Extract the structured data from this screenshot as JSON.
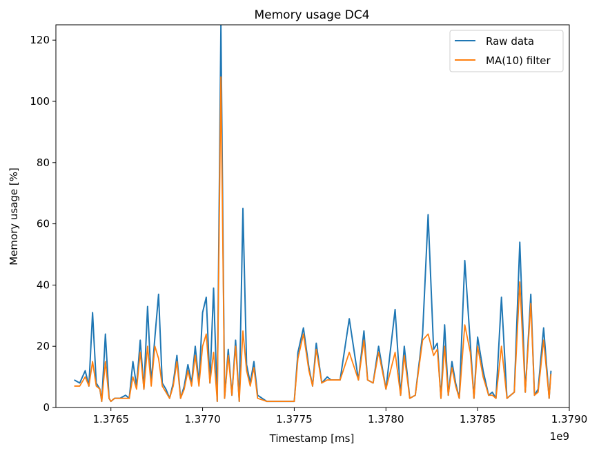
{
  "chart_data": {
    "type": "line",
    "title": "Memory usage DC4",
    "xlabel": "Timestamp [ms]",
    "ylabel": "Memory usage [%]",
    "x_offset_label": "1e9",
    "xlim": [
      1.3762,
      1.379
    ],
    "ylim": [
      0,
      125
    ],
    "xticks": [
      1.3765,
      1.377,
      1.3775,
      1.378,
      1.3785,
      1.379
    ],
    "xtick_labels": [
      "1.3765",
      "1.3770",
      "1.3775",
      "1.3780",
      "1.3785",
      "1.3790"
    ],
    "yticks": [
      0,
      20,
      40,
      60,
      80,
      100,
      120
    ],
    "ytick_labels": [
      "0",
      "20",
      "40",
      "60",
      "80",
      "100",
      "120"
    ],
    "grid": false,
    "legend_position": "top-right",
    "colors": {
      "raw": "#1f77b4",
      "ma": "#ff7f0e"
    },
    "series": [
      {
        "name": "Raw data",
        "color": "#1f77b4",
        "x": [
          1.3763,
          1.37633,
          1.37636,
          1.37638,
          1.3764,
          1.37642,
          1.37644,
          1.37645,
          1.37647,
          1.37649,
          1.3765,
          1.37652,
          1.37655,
          1.37658,
          1.3766,
          1.37662,
          1.37664,
          1.37666,
          1.37668,
          1.3767,
          1.37672,
          1.37674,
          1.37676,
          1.37678,
          1.3768,
          1.37682,
          1.37684,
          1.37686,
          1.37688,
          1.3769,
          1.37692,
          1.37694,
          1.37696,
          1.37698,
          1.377,
          1.37702,
          1.37704,
          1.37706,
          1.37708,
          1.3771,
          1.37712,
          1.37714,
          1.37716,
          1.37718,
          1.3772,
          1.37722,
          1.37724,
          1.37726,
          1.37728,
          1.3773,
          1.37735,
          1.3774,
          1.37745,
          1.3775,
          1.37752,
          1.37755,
          1.37758,
          1.3776,
          1.37762,
          1.37765,
          1.37768,
          1.3777,
          1.37775,
          1.3778,
          1.37785,
          1.37788,
          1.3779,
          1.37793,
          1.37796,
          1.378,
          1.37805,
          1.37808,
          1.3781,
          1.37813,
          1.37816,
          1.3782,
          1.37823,
          1.37826,
          1.37828,
          1.3783,
          1.37832,
          1.37834,
          1.37836,
          1.37838,
          1.3784,
          1.37843,
          1.37846,
          1.37848,
          1.3785,
          1.37853,
          1.37856,
          1.37858,
          1.3786,
          1.37863,
          1.37866,
          1.3787,
          1.37873,
          1.37876,
          1.37879,
          1.37881,
          1.37883,
          1.37886,
          1.37889,
          1.3789
        ],
        "values": [
          9,
          8,
          12,
          7,
          31,
          8,
          6,
          2,
          24,
          3,
          2,
          3,
          3,
          4,
          3,
          15,
          7,
          22,
          6,
          33,
          8,
          23,
          37,
          8,
          6,
          3,
          8,
          17,
          3,
          7,
          14,
          8,
          20,
          8,
          31,
          36,
          8,
          39,
          2,
          125,
          3,
          19,
          4,
          22,
          2,
          65,
          14,
          8,
          15,
          4,
          2,
          2,
          2,
          2,
          18,
          26,
          13,
          7,
          21,
          8,
          10,
          9,
          9,
          29,
          9,
          25,
          9,
          8,
          20,
          6,
          32,
          4,
          20,
          3,
          4,
          24,
          63,
          19,
          21,
          3,
          27,
          4,
          15,
          8,
          3,
          48,
          21,
          3,
          23,
          12,
          4,
          5,
          3,
          36,
          3,
          5,
          54,
          5,
          37,
          4,
          6,
          26,
          3,
          12
        ]
      },
      {
        "name": "MA(10) filter",
        "color": "#ff7f0e",
        "x": [
          1.3763,
          1.37633,
          1.37636,
          1.37638,
          1.3764,
          1.37642,
          1.37644,
          1.37645,
          1.37647,
          1.37649,
          1.3765,
          1.37652,
          1.37655,
          1.37658,
          1.3766,
          1.37662,
          1.37664,
          1.37666,
          1.37668,
          1.3767,
          1.37672,
          1.37674,
          1.37676,
          1.37678,
          1.3768,
          1.37682,
          1.37684,
          1.37686,
          1.37688,
          1.3769,
          1.37692,
          1.37694,
          1.37696,
          1.37698,
          1.377,
          1.37702,
          1.37704,
          1.37706,
          1.37708,
          1.3771,
          1.37712,
          1.37714,
          1.37716,
          1.37718,
          1.3772,
          1.37722,
          1.37724,
          1.37726,
          1.37728,
          1.3773,
          1.37735,
          1.3774,
          1.37745,
          1.3775,
          1.37752,
          1.37755,
          1.37758,
          1.3776,
          1.37762,
          1.37765,
          1.37768,
          1.3777,
          1.37775,
          1.3778,
          1.37785,
          1.37788,
          1.3779,
          1.37793,
          1.37796,
          1.378,
          1.37805,
          1.37808,
          1.3781,
          1.37813,
          1.37816,
          1.3782,
          1.37823,
          1.37826,
          1.37828,
          1.3783,
          1.37832,
          1.37834,
          1.37836,
          1.37838,
          1.3784,
          1.37843,
          1.37846,
          1.37848,
          1.3785,
          1.37853,
          1.37856,
          1.37858,
          1.3786,
          1.37863,
          1.37866,
          1.3787,
          1.37873,
          1.37876,
          1.37879,
          1.37881,
          1.37883,
          1.37886,
          1.37889,
          1.3789
        ],
        "values": [
          7,
          7,
          10,
          7,
          15,
          7,
          6,
          2,
          15,
          3,
          2,
          3,
          3,
          3,
          3,
          10,
          6,
          18,
          6,
          20,
          7,
          20,
          16,
          7,
          5,
          3,
          7,
          15,
          3,
          6,
          12,
          7,
          17,
          7,
          20,
          24,
          8,
          18,
          2,
          108,
          3,
          17,
          4,
          20,
          2,
          25,
          12,
          7,
          13,
          3,
          2,
          2,
          2,
          2,
          16,
          24,
          12,
          7,
          19,
          8,
          9,
          9,
          9,
          18,
          9,
          22,
          9,
          8,
          18,
          6,
          18,
          4,
          17,
          3,
          4,
          22,
          24,
          17,
          19,
          3,
          20,
          4,
          13,
          7,
          3,
          27,
          18,
          3,
          20,
          10,
          4,
          4,
          3,
          20,
          3,
          5,
          41,
          5,
          34,
          4,
          5,
          22,
          3,
          11
        ]
      }
    ]
  }
}
